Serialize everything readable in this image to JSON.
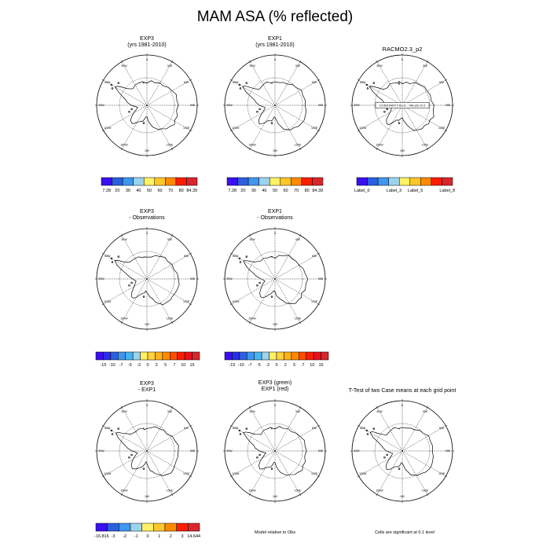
{
  "title": "MAM ASA (% reflected)",
  "lon_labels": [
    "0",
    "30E",
    "60E",
    "90E",
    "120E",
    "150E",
    "180",
    "150W",
    "120W",
    "90W",
    "60W",
    "30W"
  ],
  "panels": [
    {
      "title": [
        "EXP3",
        "(yrs 1981-2010)"
      ],
      "const_label": ""
    },
    {
      "title": [
        "EXP1",
        "(yrs 1981-2010)"
      ],
      "const_label": ""
    },
    {
      "title": [
        "RACMO2.3_p2"
      ],
      "const_label": "CONSTANT FIELD - VALUE IS 0"
    },
    {
      "title": [
        "EXP3",
        "- Observations"
      ],
      "const_label": ""
    },
    {
      "title": [
        "EXP1",
        "- Observations"
      ],
      "const_label": ""
    },
    {
      "title": [
        "EXP3",
        "- EXP1"
      ],
      "const_label": ""
    },
    {
      "title": [
        "EXP3 (green)",
        "EXP1 (red)"
      ],
      "const_label": ""
    },
    {
      "title": [
        "T-Test of two Case means at each grid point"
      ],
      "const_label": ""
    }
  ],
  "colorbars": [
    {
      "colors": [
        "#3a0ff0",
        "#2c5fe0",
        "#3f96ee",
        "#9ad3ee",
        "#fff066",
        "#ffc62a",
        "#ff8a00",
        "#ff1c00",
        "#d8262c"
      ],
      "labels": [
        "7.28",
        "20",
        "30",
        "40",
        "50",
        "60",
        "70",
        "80",
        "84.39"
      ]
    },
    {
      "colors": [
        "#3a0ff0",
        "#2c5fe0",
        "#3f96ee",
        "#9ad3ee",
        "#fff066",
        "#ffc62a",
        "#ff8a00",
        "#ff1c00",
        "#d8262c"
      ],
      "labels": [
        "7.28",
        "20",
        "30",
        "40",
        "50",
        "60",
        "70",
        "80",
        "84.39"
      ]
    },
    {
      "colors": [
        "#3a0ff0",
        "#2c5fe0",
        "#3f96ee",
        "#9ad3ee",
        "#fff066",
        "#ffc62a",
        "#ff8a00",
        "#ff1c00",
        "#d8262c"
      ],
      "labels": [
        "Label_0",
        "Label_3",
        "Label_5",
        "Label_8"
      ]
    },
    {
      "colors": [
        "#3a0ff0",
        "#2a2ee8",
        "#2c5fe0",
        "#3f96ee",
        "#49b3f2",
        "#9ad3ee",
        "#fff066",
        "#ffd23c",
        "#ffb219",
        "#ff8a00",
        "#ff4e00",
        "#ff1c00",
        "#e8101a",
        "#d8262c"
      ],
      "labels": [
        "-15",
        "-10",
        "-7",
        "-5",
        "-2",
        "0",
        "2",
        "5",
        "7",
        "10",
        "15"
      ]
    },
    {
      "colors": [
        "#3a0ff0",
        "#2a2ee8",
        "#2c5fe0",
        "#3f96ee",
        "#49b3f2",
        "#9ad3ee",
        "#fff066",
        "#ffd23c",
        "#ffb219",
        "#ff8a00",
        "#ff4e00",
        "#ff1c00",
        "#e8101a",
        "#d8262c"
      ],
      "labels": [
        "-15",
        "-10",
        "-7",
        "-5",
        "-2",
        "0",
        "2",
        "5",
        "7",
        "10",
        "15"
      ]
    },
    {
      "colors": [
        "#3a0ff0",
        "#2c5fe0",
        "#3f96ee",
        "#9ad3ee",
        "#fff066",
        "#ffc62a",
        "#ff8a00",
        "#ff1c00",
        "#d8262c"
      ],
      "labels": [
        "-16.816",
        "-3",
        "-2",
        "-1",
        "0",
        "1",
        "2",
        "3",
        "14.644"
      ]
    }
  ],
  "notes": [
    "Model relative to Obs",
    "Cells are significant at 0.1 level"
  ]
}
